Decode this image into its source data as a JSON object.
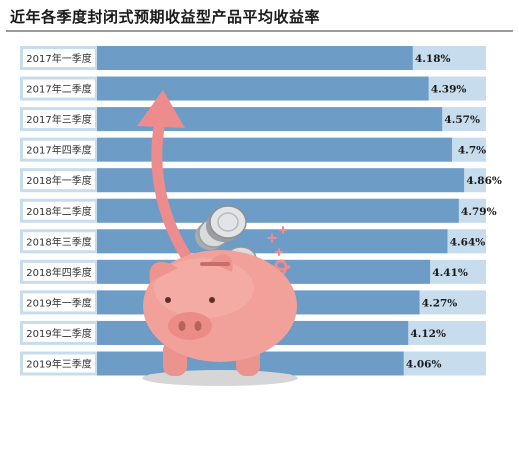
{
  "chart_data": {
    "type": "bar",
    "orientation": "horizontal",
    "title": "近年各季度封闭式预期收益型产品平均收益率",
    "categories": [
      "2017年一季度",
      "2017年二季度",
      "2017年三季度",
      "2017年四季度",
      "2018年一季度",
      "2018年二季度",
      "2018年三季度",
      "2018年四季度",
      "2019年一季度",
      "2019年二季度",
      "2019年三季度"
    ],
    "values": [
      4.18,
      4.39,
      4.57,
      4.7,
      4.86,
      4.79,
      4.64,
      4.41,
      4.27,
      4.12,
      4.06
    ],
    "value_labels": [
      "4.18%",
      "4.39%",
      "4.57%",
      "4.7%",
      "4.86%",
      "4.79%",
      "4.64%",
      "4.41%",
      "4.27%",
      "4.12%",
      "4.06%"
    ],
    "xlim": [
      0,
      5.15
    ],
    "grid": false,
    "legend": "none",
    "colors": {
      "bar": "#6d9cc7",
      "track": "#c7dced",
      "label_box": "#ffffff",
      "value_text": "#1a1a1a",
      "pig_body": "#f2a09a",
      "arrow": "#ec8c8c"
    },
    "decorations": [
      "piggy-bank-illustration",
      "rising-arrow",
      "coins"
    ]
  }
}
